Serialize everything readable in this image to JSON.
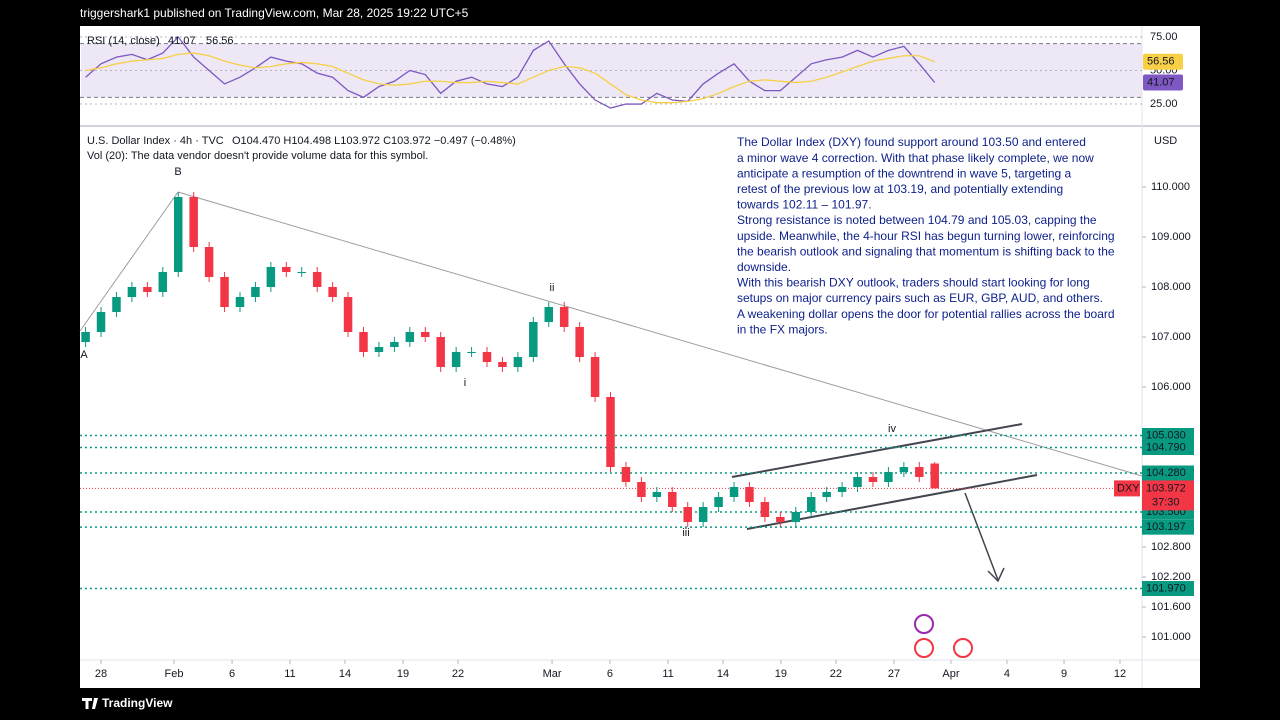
{
  "header": "triggershark1 published on TradingView.com, Mar 28, 2025 19:22 UTC+5",
  "footer": "TradingView",
  "chart_data": [
    {
      "type": "line",
      "legend": "RSI (14, close)",
      "x": [
        -0.8,
        0,
        0.8,
        1.6,
        2.4,
        3.2,
        4,
        4.8,
        5.6,
        6.4,
        7.2,
        8,
        8.8,
        9.6,
        10.4,
        11.2,
        12,
        12.8,
        13.6,
        14.4,
        15.2,
        16,
        16.8,
        17.6,
        18.4,
        19.2,
        20,
        20.8,
        21.6,
        22.4,
        23.2,
        24,
        24.8,
        25.6,
        26.4,
        27.2,
        28,
        28.8,
        29.6,
        30.4,
        31.2,
        32,
        32.8,
        33.6,
        34.4,
        35.2,
        36,
        36.8,
        37.6,
        38.4,
        39.2,
        40,
        40.8,
        41.6,
        42.4,
        43.2
      ],
      "series": [
        {
          "color": "#7e57c2",
          "values": [
            45,
            55,
            60,
            62,
            58,
            63,
            75,
            60,
            50,
            40,
            45,
            52,
            60,
            57,
            55,
            48,
            45,
            35,
            30,
            38,
            42,
            50,
            47,
            33,
            42,
            45,
            40,
            38,
            45,
            65,
            72,
            55,
            40,
            28,
            22,
            25,
            25,
            33,
            28,
            27,
            40,
            48,
            55,
            42,
            35,
            35,
            45,
            55,
            58,
            60,
            65,
            60,
            65,
            68,
            55,
            41.07
          ]
        },
        {
          "color": "#f7d046",
          "values": [
            50,
            52,
            55,
            57,
            58,
            59,
            62,
            63,
            61,
            57,
            54,
            52,
            53,
            55,
            56,
            55,
            53,
            48,
            43,
            40,
            39,
            40,
            42,
            42,
            41,
            41,
            42,
            41,
            40,
            45,
            50,
            53,
            52,
            48,
            40,
            32,
            28,
            26,
            26,
            27,
            29,
            33,
            38,
            42,
            43,
            42,
            41,
            42,
            45,
            49,
            53,
            57,
            59,
            61,
            61,
            56.56
          ]
        }
      ],
      "bands": [
        70,
        30
      ],
      "xlim": [
        -1.09,
        53.94
      ],
      "ylim": [
        13.1,
        80.2
      ],
      "yticks": [
        {
          "value": 75,
          "label": "75.00"
        },
        {
          "value": 50,
          "label": "50.00"
        },
        {
          "value": 25,
          "label": "25.00"
        }
      ]
    },
    {
      "type": "candlestick",
      "title": "U.S. Dollar Index · 4h · TVC",
      "ohlc_legend": "O104.470 H104.498 L103.972 C103.972 −0.497 (−0.48%)",
      "subtitle": "Vol (20): The data vendor doesn't provide volume data for this symbol.",
      "currency": "USD",
      "x": [
        -0.8,
        0,
        0.8,
        1.6,
        2.4,
        3.2,
        4,
        4.8,
        5.6,
        6.4,
        7.2,
        8,
        8.8,
        9.6,
        10.4,
        11.2,
        12,
        12.8,
        13.6,
        14.4,
        15.2,
        16,
        16.8,
        17.6,
        18.4,
        19.2,
        20,
        20.8,
        21.6,
        22.4,
        23.2,
        24,
        24.8,
        25.6,
        26.4,
        27.2,
        28,
        28.8,
        29.6,
        30.4,
        31.2,
        32,
        32.8,
        33.6,
        34.4,
        35.2,
        36,
        36.8,
        37.6,
        38.4,
        39.2,
        40,
        40.8,
        41.6,
        42.4,
        43.2
      ],
      "open": [
        106.9,
        107.1,
        107.5,
        107.8,
        108.0,
        107.9,
        108.3,
        109.8,
        108.8,
        108.2,
        107.6,
        107.8,
        108.0,
        108.4,
        108.3,
        108.3,
        108.0,
        107.8,
        107.1,
        106.7,
        106.8,
        106.9,
        107.1,
        107.0,
        106.4,
        106.7,
        106.7,
        106.5,
        106.4,
        106.6,
        107.3,
        107.6,
        107.2,
        106.6,
        105.8,
        104.4,
        104.1,
        103.8,
        103.9,
        103.6,
        103.3,
        103.6,
        103.8,
        104.0,
        103.7,
        103.4,
        103.3,
        103.5,
        103.8,
        103.9,
        104.0,
        104.2,
        104.1,
        104.3,
        104.4,
        104.47
      ],
      "high": [
        107.2,
        107.6,
        107.9,
        108.1,
        108.1,
        108.4,
        109.9,
        109.9,
        108.9,
        108.3,
        107.9,
        108.1,
        108.5,
        108.5,
        108.4,
        108.4,
        108.1,
        107.9,
        107.2,
        106.9,
        107.0,
        107.2,
        107.2,
        107.1,
        106.8,
        106.8,
        106.8,
        106.6,
        106.7,
        107.4,
        107.7,
        107.7,
        107.3,
        106.7,
        105.9,
        104.5,
        104.2,
        104.0,
        104.0,
        103.7,
        103.7,
        103.9,
        104.1,
        104.1,
        103.8,
        103.5,
        103.6,
        103.9,
        104.0,
        104.1,
        104.3,
        104.3,
        104.4,
        104.5,
        104.5,
        104.498
      ],
      "low": [
        106.8,
        107.0,
        107.4,
        107.7,
        107.8,
        107.8,
        108.2,
        108.7,
        108.1,
        107.5,
        107.5,
        107.7,
        107.9,
        108.2,
        108.2,
        107.9,
        107.7,
        107.0,
        106.6,
        106.6,
        106.7,
        106.8,
        106.9,
        106.3,
        106.3,
        106.6,
        106.4,
        106.3,
        106.3,
        106.5,
        107.2,
        107.1,
        106.5,
        105.7,
        104.3,
        104.0,
        103.7,
        103.7,
        103.5,
        103.2,
        103.2,
        103.5,
        103.7,
        103.6,
        103.3,
        103.2,
        103.2,
        103.4,
        103.7,
        103.8,
        103.9,
        104.0,
        104.0,
        104.2,
        104.1,
        103.972
      ],
      "close": [
        107.1,
        107.5,
        107.8,
        108.0,
        107.9,
        108.3,
        109.8,
        108.8,
        108.2,
        107.6,
        107.8,
        108.0,
        108.4,
        108.3,
        108.3,
        108.0,
        107.8,
        107.1,
        106.7,
        106.8,
        106.9,
        107.1,
        107.0,
        106.4,
        106.7,
        106.7,
        106.5,
        106.4,
        106.6,
        107.3,
        107.6,
        107.2,
        106.6,
        105.8,
        104.4,
        104.1,
        103.8,
        103.9,
        103.6,
        103.3,
        103.6,
        103.8,
        104.0,
        103.7,
        103.4,
        103.3,
        103.5,
        103.8,
        103.9,
        104.0,
        104.2,
        104.1,
        104.3,
        104.4,
        104.2,
        103.972
      ],
      "up_color": "#089981",
      "down_color": "#f23645",
      "xlim": [
        -1.09,
        53.94
      ],
      "xticks": [
        {
          "value": 0,
          "label": "28"
        },
        {
          "value": 3.78,
          "label": "Feb"
        },
        {
          "value": 6.79,
          "label": "6"
        },
        {
          "value": 9.79,
          "label": "11"
        },
        {
          "value": 12.64,
          "label": "14"
        },
        {
          "value": 15.65,
          "label": "19"
        },
        {
          "value": 18.5,
          "label": "22"
        },
        {
          "value": 23.37,
          "label": "Mar"
        },
        {
          "value": 26.37,
          "label": "6"
        },
        {
          "value": 29.38,
          "label": "11"
        },
        {
          "value": 32.23,
          "label": "14"
        },
        {
          "value": 35.23,
          "label": "19"
        },
        {
          "value": 38.08,
          "label": "22"
        },
        {
          "value": 41.09,
          "label": "27"
        },
        {
          "value": 44.04,
          "label": "Apr"
        },
        {
          "value": 46.94,
          "label": "4"
        },
        {
          "value": 49.9,
          "label": "9"
        },
        {
          "value": 52.8,
          "label": "12"
        }
      ],
      "ylim": [
        100.54,
        111.14
      ],
      "yticks": [
        {
          "value": 110,
          "label": "110.000"
        },
        {
          "value": 109,
          "label": "109.000"
        },
        {
          "value": 108,
          "label": "108.000"
        },
        {
          "value": 107,
          "label": "107.000"
        },
        {
          "value": 106,
          "label": "106.000"
        },
        {
          "value": 102.8,
          "label": "102.800"
        },
        {
          "value": 102.2,
          "label": "102.200"
        },
        {
          "value": 101.6,
          "label": "101.600"
        },
        {
          "value": 101,
          "label": "101.000"
        }
      ],
      "levels": [
        {
          "value": 105.03,
          "label": "105.030"
        },
        {
          "value": 104.79,
          "label": "104.790"
        },
        {
          "value": 104.28,
          "label": "104.280"
        },
        {
          "value": 103.5,
          "label": "103.500"
        },
        {
          "value": 103.197,
          "label": "103.197"
        },
        {
          "value": 101.97,
          "label": "101.970"
        }
      ],
      "level_color": "#089981",
      "last_price": {
        "value": 103.972,
        "label": "103.972"
      },
      "symbol": "DXY",
      "countdown": "37:30",
      "wave_labels": [
        "A",
        "B",
        "i",
        "ii",
        "iii",
        "iv"
      ],
      "annotation": [
        "The Dollar Index (DXY) found support around 103.50 and entered",
        "a minor wave 4 correction. With that phase likely complete, we now",
        "anticipate a resumption of the downtrend in wave 5, targeting a",
        "retest of the previous low at 103.19, and potentially extending",
        "towards 102.11 – 101.97.",
        "Strong resistance is noted between 104.79 and 105.03, capping the",
        "upside. Meanwhile, the 4-hour RSI has begun turning lower, reinforcing",
        "the bearish outlook and signaling that momentum is shifting back to the",
        "downside.",
        "With this bearish DXY outlook, traders should start looking for long",
        "setups on major currency pairs such as EUR, GBP, AUD, and others.",
        "A weakening dollar opens the door for potential rallies across the board",
        "in the FX majors."
      ]
    }
  ]
}
